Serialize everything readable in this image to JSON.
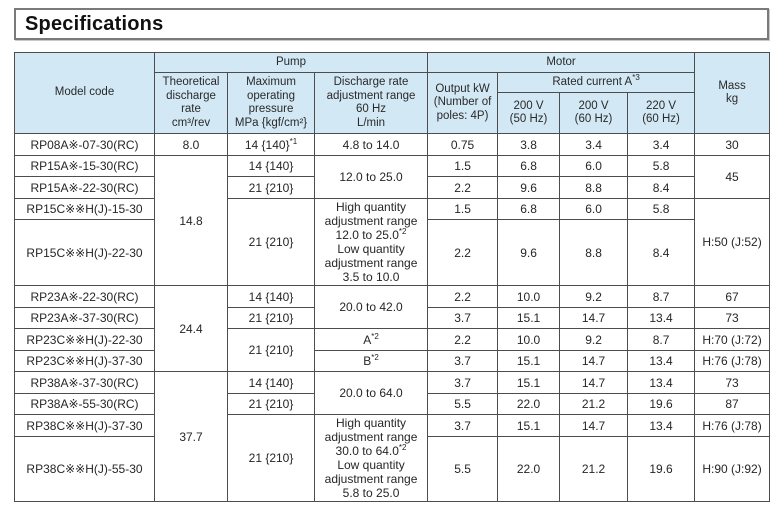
{
  "title": "Specifications",
  "colors": {
    "header_bg": "#d2e8f4",
    "border": "#4d4d4d",
    "text": "#262626"
  },
  "table": {
    "header": {
      "model_code": "Model code",
      "pump_group": "Pump",
      "motor_group": "Motor",
      "mass_lines": [
        "Mass",
        "kg"
      ],
      "theoretical_lines": [
        "Theoretical",
        "discharge",
        "rate",
        "cm³/rev"
      ],
      "pressure_lines": [
        "Maximum",
        "operating",
        "pressure",
        "MPa {kgf/cm²}"
      ],
      "range_lines": [
        "Discharge rate",
        "adjustment range",
        "60 Hz",
        "L/min"
      ],
      "output_lines": [
        "Output kW",
        "(Number of",
        "poles: 4P)"
      ],
      "rated_current": "Rated current A",
      "rated_current_sup": "*3",
      "v200_50_lines": [
        "200 V",
        "(50 Hz)"
      ],
      "v200_60_lines": [
        "200 V",
        "(60 Hz)"
      ],
      "v220_60_lines": [
        "220 V",
        "(60 Hz)"
      ]
    },
    "rows": [
      {
        "model": "RP08A※-07-30(RC)",
        "discharge": "8.0",
        "pressure": "14 {140}",
        "pressure_sup": "*1",
        "range": "4.8 to 14.0",
        "output": "0.75",
        "a200_50": "3.8",
        "a200_60": "3.4",
        "a220_60": "3.4",
        "mass": "30"
      },
      {
        "model": "RP15A※-15-30(RC)",
        "discharge": "14.8",
        "pressure": "14 {140}",
        "range": "12.0 to 25.0",
        "output": "1.5",
        "a200_50": "6.8",
        "a200_60": "6.0",
        "a220_60": "5.8",
        "mass": "45"
      },
      {
        "model": "RP15A※-22-30(RC)",
        "pressure": "21 {210}",
        "output": "2.2",
        "a200_50": "9.6",
        "a200_60": "8.8",
        "a220_60": "8.4"
      },
      {
        "model": "RP15C※※H(J)-15-30",
        "pressure": "21 {210}",
        "range_hi_lines": [
          "High quantity",
          "adjustment range",
          "12.0 to 25.0"
        ],
        "range_hi_sup": "*2",
        "range_lo_lines": [
          "Low quantity",
          "adjustment range",
          "3.5 to 10.0"
        ],
        "output": "1.5",
        "a200_50": "6.8",
        "a200_60": "6.0",
        "a220_60": "5.8",
        "mass": "H:50 (J:52)"
      },
      {
        "model": "RP15C※※H(J)-22-30",
        "output": "2.2",
        "a200_50": "9.6",
        "a200_60": "8.8",
        "a220_60": "8.4"
      },
      {
        "model": "RP23A※-22-30(RC)",
        "discharge": "24.4",
        "pressure": "14 {140}",
        "range": "20.0 to 42.0",
        "output": "2.2",
        "a200_50": "10.0",
        "a200_60": "9.2",
        "a220_60": "8.7",
        "mass": "67"
      },
      {
        "model": "RP23A※-37-30(RC)",
        "pressure": "21 {210}",
        "output": "3.7",
        "a200_50": "15.1",
        "a200_60": "14.7",
        "a220_60": "13.4",
        "mass": "73"
      },
      {
        "model": "RP23C※※H(J)-22-30",
        "pressure": "21 {210}",
        "range": "A",
        "range_sup": "*2",
        "output": "2.2",
        "a200_50": "10.0",
        "a200_60": "9.2",
        "a220_60": "8.7",
        "mass": "H:70 (J:72)"
      },
      {
        "model": "RP23C※※H(J)-37-30",
        "range": "B",
        "range_sup": "*2",
        "output": "3.7",
        "a200_50": "15.1",
        "a200_60": "14.7",
        "a220_60": "13.4",
        "mass": "H:76 (J:78)"
      },
      {
        "model": "RP38A※-37-30(RC)",
        "discharge": "37.7",
        "pressure": "14 {140}",
        "range": "20.0 to 64.0",
        "output": "3.7",
        "a200_50": "15.1",
        "a200_60": "14.7",
        "a220_60": "13.4",
        "mass": "73"
      },
      {
        "model": "RP38A※-55-30(RC)",
        "pressure": "21 {210}",
        "output": "5.5",
        "a200_50": "22.0",
        "a200_60": "21.2",
        "a220_60": "19.6",
        "mass": "87"
      },
      {
        "model": "RP38C※※H(J)-37-30",
        "pressure": "21 {210}",
        "range_hi_lines": [
          "High quantity",
          "adjustment range",
          "30.0 to 64.0"
        ],
        "range_hi_sup": "*2",
        "range_lo_lines": [
          "Low quantity",
          "adjustment range",
          "5.8 to 25.0"
        ],
        "output": "3.7",
        "a200_50": "15.1",
        "a200_60": "14.7",
        "a220_60": "13.4",
        "mass": "H:76 (J:78)"
      },
      {
        "model": "RP38C※※H(J)-55-30",
        "output": "5.5",
        "a200_50": "22.0",
        "a200_60": "21.2",
        "a220_60": "19.6",
        "mass": "H:90 (J:92)"
      }
    ]
  }
}
